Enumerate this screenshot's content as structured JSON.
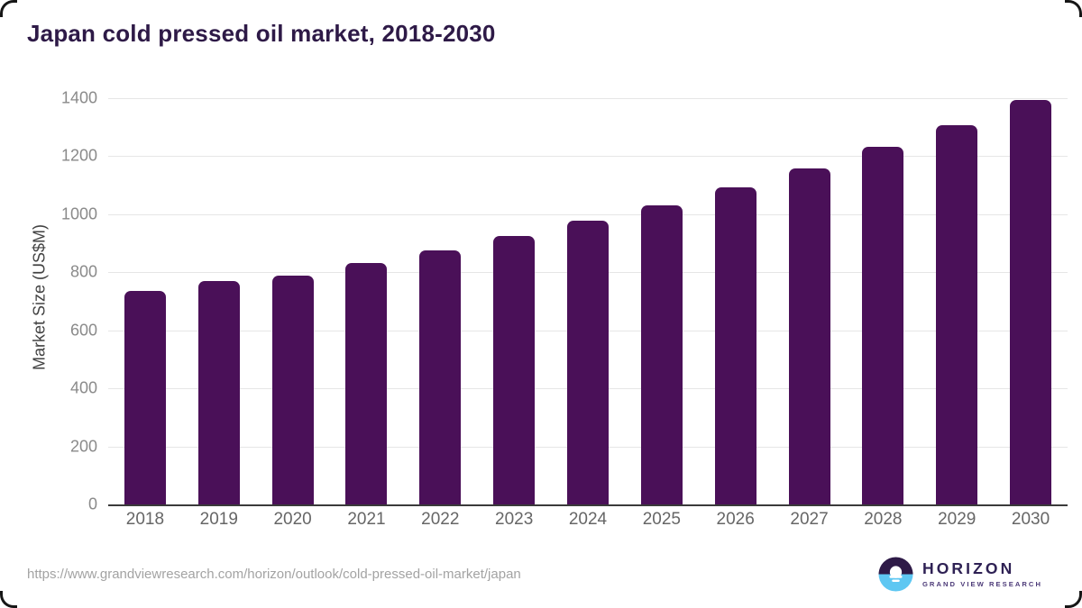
{
  "page": {
    "title": "Japan cold pressed oil market, 2018-2030"
  },
  "chart_data": {
    "type": "bar",
    "title": "Japan cold pressed oil market, 2018-2030",
    "categories": [
      "2018",
      "2019",
      "2020",
      "2021",
      "2022",
      "2023",
      "2024",
      "2025",
      "2026",
      "2027",
      "2028",
      "2029",
      "2030"
    ],
    "values": [
      735,
      770,
      790,
      833,
      876,
      924,
      977,
      1032,
      1092,
      1158,
      1232,
      1307,
      1395
    ],
    "xlabel": "",
    "ylabel": "Market Size (US$M)",
    "ylim": [
      0,
      1400
    ],
    "ytick_step": 200,
    "grid": "horizontal",
    "legend_position": "none",
    "bar_color": "#4a1058"
  },
  "footer": {
    "source_url": "https://www.grandviewresearch.com/horizon/outlook/cold-pressed-oil-market/japan",
    "brand": {
      "name": "HORIZON",
      "tagline": "GRAND VIEW RESEARCH"
    }
  },
  "colors": {
    "bar": "#4a1058",
    "title_text": "#2e1a47",
    "gridline": "#e6e6e6",
    "axis_line": "#3a3a3a",
    "y_tick_label": "#8a8a8a",
    "x_tick_label": "#666666",
    "url_text": "#a3a3a3",
    "logo_dark_half": "#2e1a47",
    "logo_blue_half": "#5ec7f2"
  }
}
